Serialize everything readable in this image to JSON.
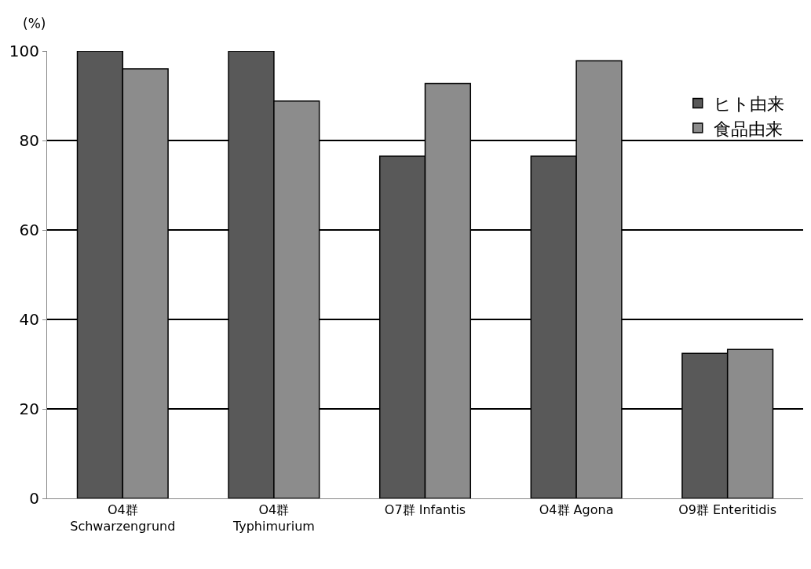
{
  "chart_data": {
    "type": "bar",
    "ylabel": "(%)",
    "categories": [
      "O4群\nSchwarzengrund",
      "O4群\nTyphimurium",
      "O7群 Infantis",
      "O4群 Agona",
      "O9群 Enteritidis"
    ],
    "series": [
      {
        "name": "ヒト由来",
        "color": "#595959",
        "values": [
          100,
          100,
          76.5,
          76.5,
          32.4
        ]
      },
      {
        "name": "食品由来",
        "color": "#8c8c8c",
        "values": [
          96.0,
          88.8,
          92.7,
          97.8,
          33.3
        ]
      }
    ],
    "ylim": [
      0,
      100
    ],
    "yticks": [
      0,
      20,
      40,
      60,
      80,
      100
    ],
    "grid": "y",
    "legend": "top right"
  }
}
